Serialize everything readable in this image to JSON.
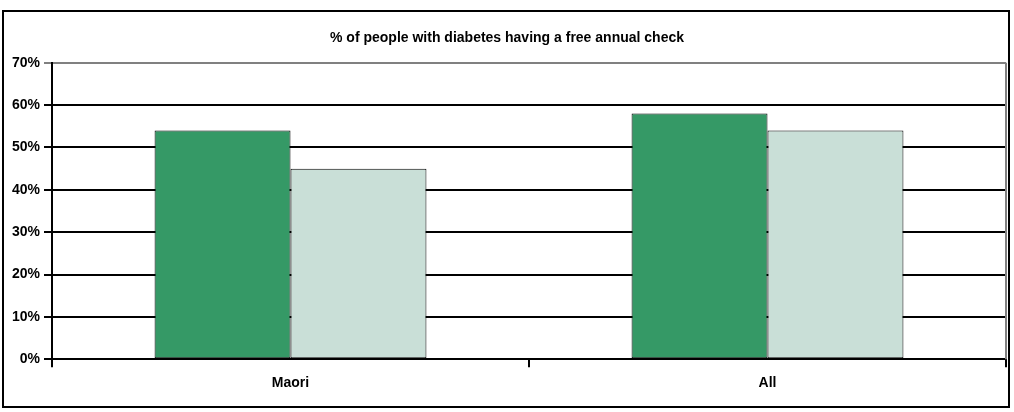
{
  "chart_data": {
    "type": "bar",
    "title": "% of people with diabetes having a free annual check",
    "categories": [
      "Maori",
      "All"
    ],
    "series": [
      {
        "color": "#359966",
        "values": [
          54,
          58
        ]
      },
      {
        "color": "#c9dfd7",
        "values": [
          45,
          54
        ]
      }
    ],
    "ylim": [
      0,
      70
    ],
    "yticks": [
      {
        "value": 0,
        "label": "0%"
      },
      {
        "value": 10,
        "label": "10%"
      },
      {
        "value": 20,
        "label": "20%"
      },
      {
        "value": 30,
        "label": "30%"
      },
      {
        "value": 40,
        "label": "40%"
      },
      {
        "value": 50,
        "label": "50%"
      },
      {
        "value": 60,
        "label": "60%"
      },
      {
        "value": 70,
        "label": "70%"
      }
    ],
    "grid": "y",
    "legend": false
  }
}
